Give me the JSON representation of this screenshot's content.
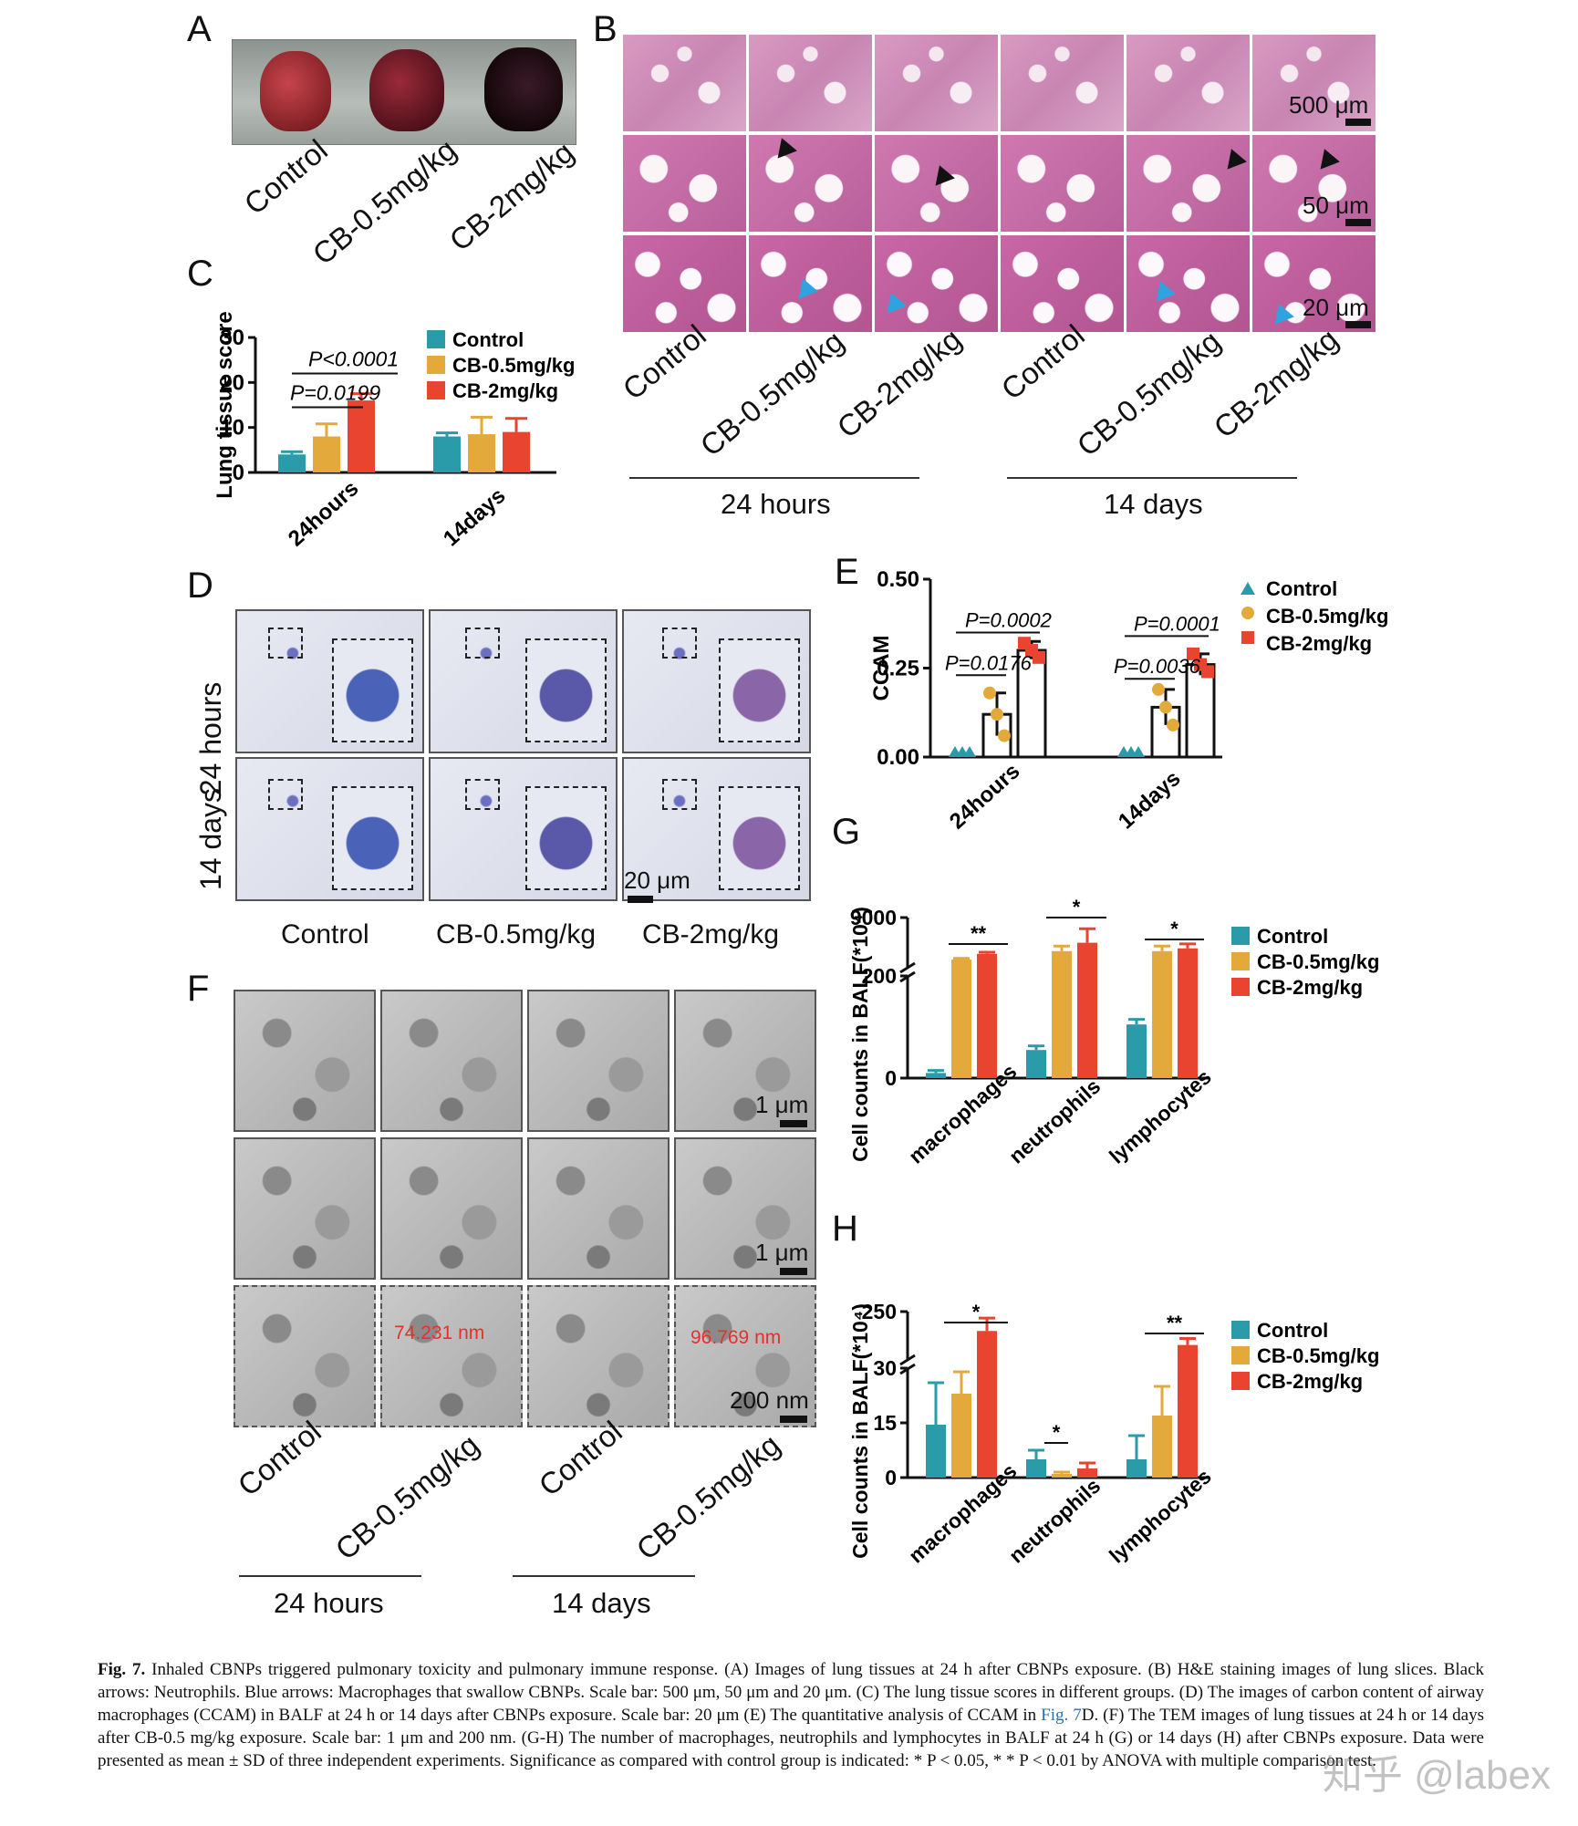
{
  "panel_letters": [
    "A",
    "B",
    "C",
    "D",
    "E",
    "F",
    "G",
    "H"
  ],
  "groups3": [
    "Control",
    "CB-0.5mg/kg",
    "CB-2mg/kg"
  ],
  "groups2": [
    "Control",
    "CB-0.5mg/kg"
  ],
  "timepoints": [
    "24 hours",
    "14 days"
  ],
  "timepoints_short": [
    "24hours",
    "14days"
  ],
  "cell_types": [
    "macrophages",
    "neutrophils",
    "lymphocytes"
  ],
  "scale_labels": {
    "b1": "500 μm",
    "b2": "50 μm",
    "b3": "20 μm",
    "d": "20 μm",
    "f1": "1 μm",
    "f2": "1 μm",
    "f3": "200 nm"
  },
  "tem_measurements": [
    "74.231 nm",
    "96.769 nm"
  ],
  "colors": {
    "control": "#2a9ba8",
    "cb05": "#e3a93a",
    "cb2": "#e8442f",
    "arrow_black": "#111111",
    "arrow_blue": "#2ea3e0"
  },
  "chart_data": [
    {
      "panel": "C",
      "type": "bar",
      "ylabel": "Lung tissue score",
      "ylim": [
        0,
        30
      ],
      "yticks": [
        0,
        10,
        20,
        30
      ],
      "categories": [
        "24hours",
        "14days"
      ],
      "series": [
        {
          "name": "Control",
          "values": [
            4,
            8
          ],
          "err": [
            0.6,
            0.8
          ]
        },
        {
          "name": "CB-0.5mg/kg",
          "values": [
            8,
            8.5
          ],
          "err": [
            2.8,
            3.8
          ]
        },
        {
          "name": "CB-2mg/kg",
          "values": [
            16,
            9
          ],
          "err": [
            1.5,
            3
          ]
        }
      ],
      "annotations": [
        "P=0.0199",
        "P<0.0001"
      ],
      "legend": "top-right"
    },
    {
      "panel": "E",
      "type": "bar",
      "ylabel": "CCAM",
      "ylim": [
        0,
        0.5
      ],
      "yticks": [
        "0.00",
        "0.25",
        "0.50"
      ],
      "categories": [
        "24hours",
        "14days"
      ],
      "series": [
        {
          "name": "Control",
          "values": [
            0,
            0
          ],
          "err": [
            0,
            0
          ],
          "points": [
            [
              0,
              0,
              0
            ],
            [
              0,
              0,
              0
            ]
          ]
        },
        {
          "name": "CB-0.5mg/kg",
          "values": [
            0.12,
            0.14
          ],
          "err": [
            0.06,
            0.05
          ],
          "points": [
            [
              0.18,
              0.12,
              0.06
            ],
            [
              0.19,
              0.14,
              0.09
            ]
          ]
        },
        {
          "name": "CB-2mg/kg",
          "values": [
            0.3,
            0.26
          ],
          "err": [
            0.025,
            0.03
          ],
          "points": [
            [
              0.32,
              0.3,
              0.28
            ],
            [
              0.29,
              0.26,
              0.24
            ]
          ]
        }
      ],
      "annotations": [
        "P=0.0002",
        "P=0.0176",
        "P=0.0001",
        "P=0.0036"
      ],
      "legend": "top-right"
    },
    {
      "panel": "G",
      "type": "bar",
      "ylabel": "Cell counts in BALF(*10⁴)",
      "yticks": [
        "0",
        "200",
        "9000"
      ],
      "broken_axis": true,
      "categories": [
        "macrophages",
        "neutrophils",
        "lymphocytes"
      ],
      "series": [
        {
          "name": "Control",
          "values": [
            10,
            55,
            105
          ],
          "err": [
            5,
            8,
            10
          ]
        },
        {
          "name": "CB-0.5mg/kg",
          "values": [
            1500,
            3000,
            3000
          ],
          "err": [
            200,
            900,
            900
          ]
        },
        {
          "name": "CB-2mg/kg",
          "values": [
            2500,
            4500,
            3500
          ],
          "err": [
            300,
            2500,
            800
          ]
        }
      ],
      "annotations": [
        "**",
        "*",
        "*"
      ],
      "legend": "top-right"
    },
    {
      "panel": "H",
      "type": "bar",
      "ylabel": "Cell counts in BALF(*10⁴)",
      "yticks": [
        "0",
        "15",
        "30",
        "250"
      ],
      "broken_axis": true,
      "categories": [
        "macrophages",
        "neutrophils",
        "lymphocytes"
      ],
      "series": [
        {
          "name": "Control",
          "values": [
            14.5,
            5,
            5
          ],
          "err": [
            11.5,
            2.5,
            6.5
          ]
        },
        {
          "name": "CB-0.5mg/kg",
          "values": [
            23,
            1,
            17
          ],
          "err": [
            6,
            0.5,
            8
          ]
        },
        {
          "name": "CB-2mg/kg",
          "values": [
            160,
            2.5,
            95
          ],
          "err": [
            60,
            1.5,
            30
          ]
        }
      ],
      "annotations": [
        "*",
        "*",
        "**"
      ],
      "legend": "top-right"
    }
  ],
  "caption": {
    "label": "Fig. 7.",
    "text_before_link": "Inhaled CBNPs triggered pulmonary toxicity and pulmonary immune response. (A) Images of lung tissues at 24 h after CBNPs exposure. (B) H&E staining images of lung slices. Black arrows: Neutrophils. Blue arrows: Macrophages that swallow CBNPs. Scale bar: 500 μm, 50 μm and 20 μm. (C) The lung tissue scores in different groups. (D) The images of carbon content of airway macrophages (CCAM) in BALF at 24 h or 14 days after CBNPs exposure. Scale bar: 20 μm (E) The quantitative analysis of CCAM in",
    "link_text": "Fig. 7",
    "text_after_link": "D. (F) The TEM images of lung tissues at 24 h or 14 days after CB-0.5 mg/kg exposure. Scale bar: 1 μm and 200 nm. (G-H) The number of macrophages, neutrophils and lymphocytes in BALF at 24 h (G) or 14 days (H) after CBNPs exposure. Data were presented as mean ± SD of three independent experiments. Significance as compared with control group is indicated: * P < 0.05, * * P < 0.01 by ANOVA with multiple comparison test."
  },
  "watermark": "知乎 @labex"
}
